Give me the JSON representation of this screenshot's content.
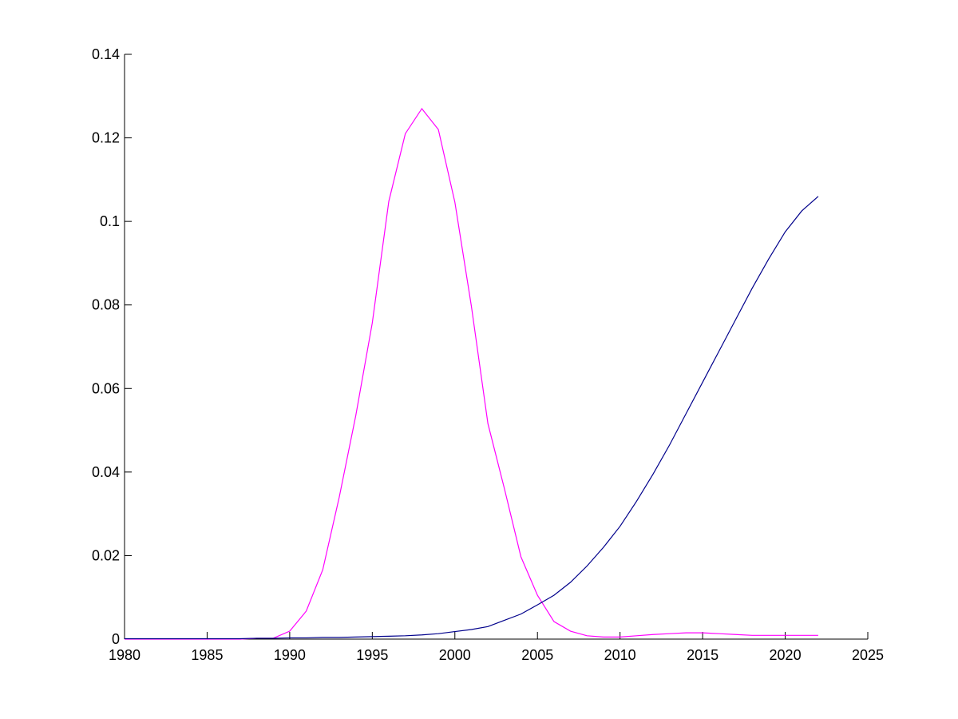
{
  "chart_data": {
    "type": "line",
    "x": [
      1980,
      1981,
      1982,
      1983,
      1984,
      1985,
      1986,
      1987,
      1988,
      1989,
      1990,
      1991,
      1992,
      1993,
      1994,
      1995,
      1996,
      1997,
      1998,
      1999,
      2000,
      2001,
      2002,
      2003,
      2004,
      2005,
      2006,
      2007,
      2008,
      2009,
      2010,
      2011,
      2012,
      2013,
      2014,
      2015,
      2016,
      2017,
      2018,
      2019,
      2020,
      2021,
      2022
    ],
    "series": [
      {
        "color": "#ff00ff",
        "values": [
          0,
          0,
          0,
          0,
          0,
          0,
          0,
          0,
          0.0002,
          0.0002,
          0.0019,
          0.0067,
          0.0166,
          0.034,
          0.0535,
          0.0757,
          0.1048,
          0.121,
          0.127,
          0.122,
          0.1046,
          0.0797,
          0.0516,
          0.036,
          0.0197,
          0.0105,
          0.0042,
          0.0019,
          0.0008,
          0.0005,
          0.0005,
          0.0008,
          0.0011,
          0.0013,
          0.0015,
          0.0015,
          0.0013,
          0.0011,
          0.0009,
          0.0009,
          0.0009,
          0.0009,
          0.0009
        ]
      },
      {
        "color": "#00008b",
        "values": [
          0.0001,
          0.0001,
          0.0001,
          0.0001,
          0.0001,
          0.0001,
          0.0001,
          0.0001,
          0.0002,
          0.0002,
          0.0003,
          0.0003,
          0.0004,
          0.0004,
          0.0005,
          0.0006,
          0.0007,
          0.0008,
          0.001,
          0.0013,
          0.0018,
          0.0023,
          0.003,
          0.0045,
          0.006,
          0.0082,
          0.0105,
          0.0136,
          0.0175,
          0.022,
          0.027,
          0.033,
          0.0395,
          0.0465,
          0.054,
          0.0615,
          0.069,
          0.0765,
          0.084,
          0.091,
          0.0975,
          0.1025,
          0.106
        ]
      }
    ],
    "xlim": [
      1980,
      2025
    ],
    "xticks": [
      1980,
      1985,
      1990,
      1995,
      2000,
      2005,
      2010,
      2015,
      2020,
      2025
    ],
    "ylim": [
      0,
      0.14
    ],
    "yticks": [
      0,
      0.02,
      0.04,
      0.06,
      0.08,
      0.1,
      0.12,
      0.14
    ]
  }
}
